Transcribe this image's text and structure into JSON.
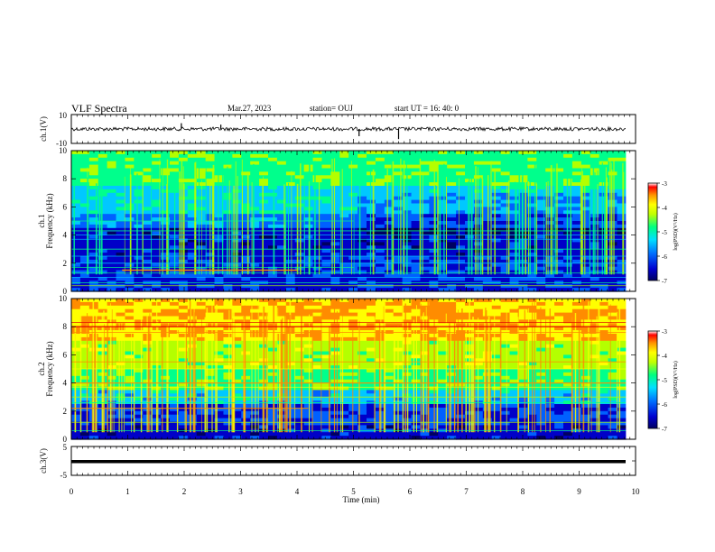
{
  "header": {
    "title": "VLF Spectra",
    "date": "Mar.27, 2023",
    "station": "station= OUJ",
    "start": "start  UT =   16: 40: 0"
  },
  "chart_data": [
    {
      "type": "line",
      "name": "ch1-waveform",
      "ylabel": "ch.1(V)",
      "ylim": [
        -10,
        10
      ],
      "y_ticks": [
        "10",
        "-10"
      ],
      "baseline": 0,
      "spikes": [
        {
          "x": 1.95,
          "y": 4
        },
        {
          "x": 2.65,
          "y": 3
        },
        {
          "x": 5.8,
          "y": -7
        },
        {
          "x": 5.1,
          "y": -5
        }
      ],
      "xlim": [
        0,
        10
      ]
    },
    {
      "type": "heatmap",
      "name": "ch1-spectrogram",
      "ylabel": "ch.1\nFrequency (kHz)",
      "ylabel_line1": "ch.1",
      "ylabel_line2": "Frequency (kHz)",
      "ylim": [
        0,
        10
      ],
      "y_ticks": [
        0,
        2,
        4,
        6,
        8,
        10
      ],
      "xlim": [
        0,
        10
      ],
      "colorbar": {
        "label": "log(PSD)(V²/Hz)",
        "ticks": [
          -3,
          -4,
          -5,
          -6,
          -7
        ]
      }
    },
    {
      "type": "heatmap",
      "name": "ch2-spectrogram",
      "ylabel_line1": "ch.2",
      "ylabel_line2": "Frequency (kHz)",
      "ylim": [
        0,
        10
      ],
      "y_ticks": [
        0,
        2,
        4,
        6,
        8,
        10
      ],
      "xlim": [
        0,
        10
      ],
      "colorbar": {
        "label": "log(PSD)(V²/Hz)",
        "ticks": [
          -3,
          -4,
          -5,
          -6,
          -7
        ]
      }
    },
    {
      "type": "line",
      "name": "ch3-waveform",
      "ylabel": "ch.3(V)",
      "ylim": [
        -5,
        5
      ],
      "y_ticks": [
        "5",
        "0",
        "-5"
      ],
      "baseline": 0,
      "xlim": [
        0,
        10
      ],
      "x_ticks": [
        "0",
        "1",
        "2",
        "3",
        "4",
        "5",
        "6",
        "7",
        "8",
        "9",
        "10"
      ],
      "xlabel": "Time (min)"
    }
  ],
  "colors": {
    "palette": [
      "#000060",
      "#0000c8",
      "#0060ff",
      "#00c8ff",
      "#00ff8c",
      "#b4ff00",
      "#ffff00",
      "#ff8c00",
      "#e00000"
    ]
  }
}
